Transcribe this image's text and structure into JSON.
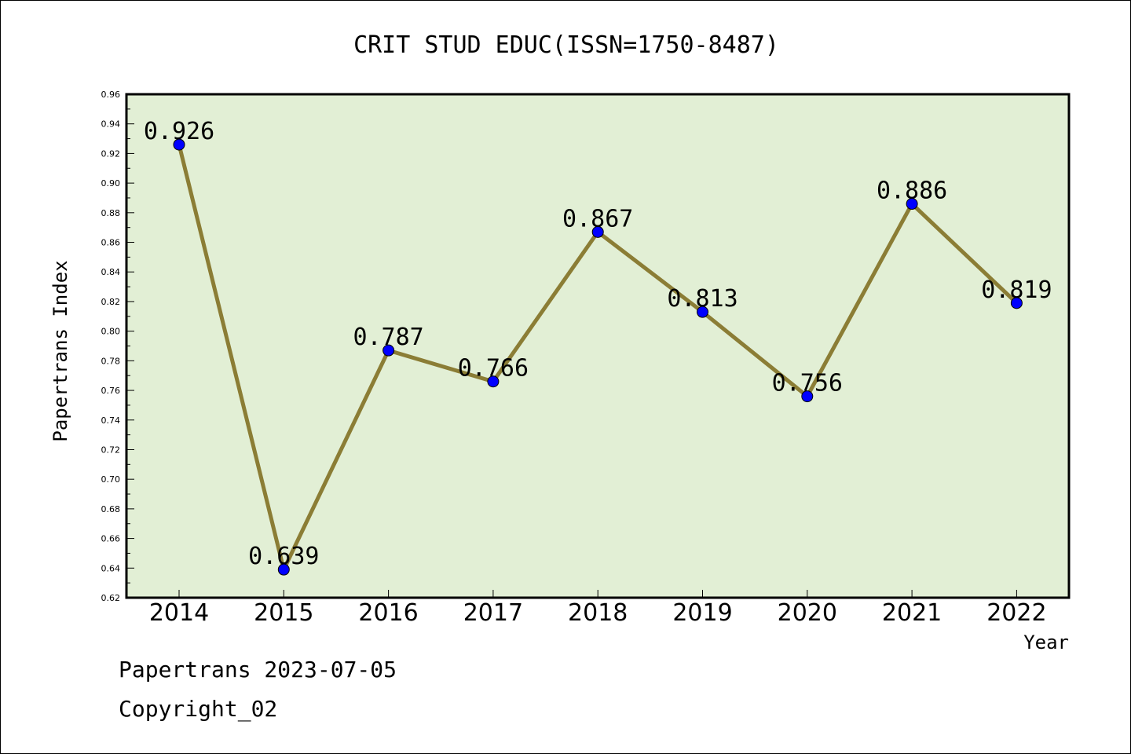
{
  "chart_data": {
    "type": "line",
    "title": "CRIT STUD EDUC(ISSN=1750-8487)",
    "xlabel": "Year",
    "ylabel": "Papertrans Index",
    "categories": [
      "2014",
      "2015",
      "2016",
      "2017",
      "2018",
      "2019",
      "2020",
      "2021",
      "2022"
    ],
    "series": [
      {
        "values": [
          0.926,
          0.639,
          0.787,
          0.766,
          0.867,
          0.813,
          0.756,
          0.886,
          0.819
        ],
        "labels": [
          "0.926",
          "0.639",
          "0.787",
          "0.766",
          "0.867",
          "0.813",
          "0.756",
          "0.886",
          "0.819"
        ]
      }
    ],
    "ylim": [
      0.62,
      0.96
    ],
    "yticks": [
      "0.62",
      "0.64",
      "0.66",
      "0.68",
      "0.70",
      "0.72",
      "0.74",
      "0.76",
      "0.78",
      "0.80",
      "0.82",
      "0.84",
      "0.86",
      "0.88",
      "0.90",
      "0.92",
      "0.94",
      "0.96"
    ],
    "grid": false,
    "colors": {
      "plot_background": "#e2efd5",
      "line": "#8b7d35",
      "marker": "#0000ff"
    }
  },
  "footer": {
    "line1": "Papertrans 2023-07-05",
    "line2": "Copyright_02"
  }
}
